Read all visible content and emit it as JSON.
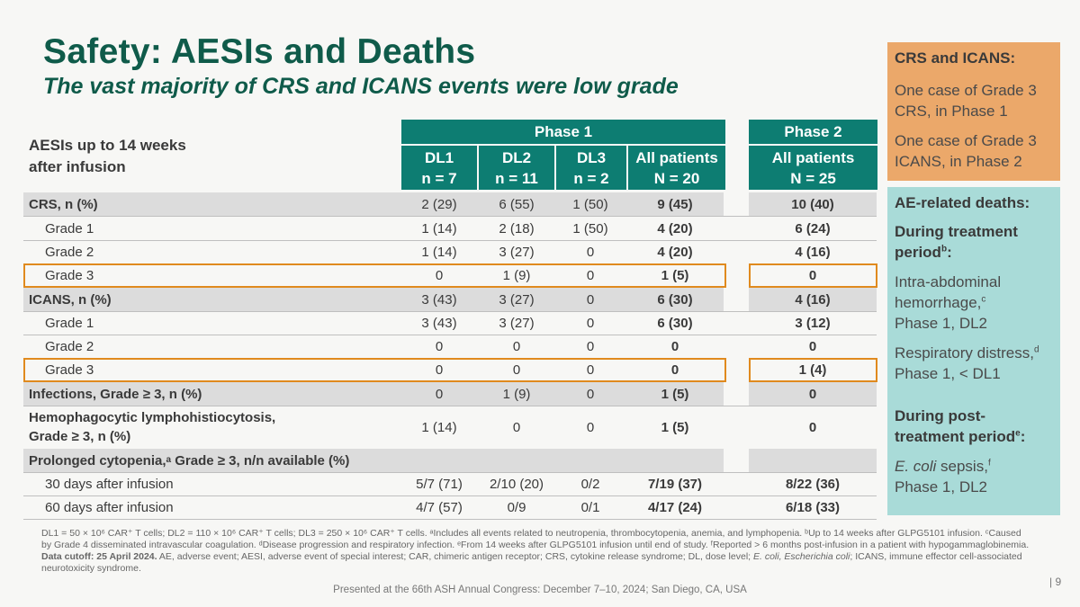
{
  "title": "Safety: AESIs and Deaths",
  "subtitle": "The vast majority of CRS and ICANS events were low grade",
  "table": {
    "row_header": "AESIs up to 14 weeks after infusion",
    "phase1_label": "Phase 1",
    "phase2_label": "Phase 2",
    "columns": [
      {
        "name": "DL1",
        "n": "n = 7"
      },
      {
        "name": "DL2",
        "n": "n = 11"
      },
      {
        "name": "DL3",
        "n": "n = 2"
      },
      {
        "name": "All patients",
        "n": "N = 20"
      },
      {
        "name": "All patients",
        "n": "N = 25"
      }
    ],
    "rows": [
      {
        "label": "CRS, n (%)",
        "v": [
          "2 (29)",
          "6 (55)",
          "1 (50)",
          "9 (45)",
          "10 (40)"
        ]
      },
      {
        "label": "Grade 1",
        "v": [
          "1 (14)",
          "2 (18)",
          "1 (50)",
          "4 (20)",
          "6 (24)"
        ]
      },
      {
        "label": "Grade 2",
        "v": [
          "1 (14)",
          "3 (27)",
          "0",
          "4 (20)",
          "4 (16)"
        ]
      },
      {
        "label": "Grade 3",
        "v": [
          "0",
          "1 (9)",
          "0",
          "1 (5)",
          "0"
        ]
      },
      {
        "label": "ICANS, n (%)",
        "v": [
          "3 (43)",
          "3 (27)",
          "0",
          "6 (30)",
          "4 (16)"
        ]
      },
      {
        "label": "Grade 1",
        "v": [
          "3 (43)",
          "3 (27)",
          "0",
          "6 (30)",
          "3 (12)"
        ]
      },
      {
        "label": "Grade 2",
        "v": [
          "0",
          "0",
          "0",
          "0",
          "0"
        ]
      },
      {
        "label": "Grade 3",
        "v": [
          "0",
          "0",
          "0",
          "0",
          "1 (4)"
        ]
      },
      {
        "label": "Infections, Grade ≥ 3, n (%)",
        "v": [
          "0",
          "1 (9)",
          "0",
          "1 (5)",
          "0"
        ]
      },
      {
        "label": "Hemophagocytic lymphohistiocytosis,",
        "label2": "Grade ≥ 3, n (%)",
        "v": [
          "1 (14)",
          "0",
          "0",
          "1 (5)",
          "0"
        ]
      },
      {
        "label": "Prolonged cytopenia,",
        "sup": "a",
        "label_rest": " Grade ≥ 3, n/n available (%)"
      },
      {
        "label": "30 days after infusion",
        "v": [
          "5/7 (71)",
          "2/10 (20)",
          "0/2",
          "7/19 (37)",
          "8/22 (36)"
        ]
      },
      {
        "label": "60 days after infusion",
        "v": [
          "4/7 (57)",
          "0/9",
          "0/1",
          "4/17 (24)",
          "6/18 (33)"
        ]
      }
    ]
  },
  "crs_box": {
    "title": "CRS and ICANS:",
    "line1": "One case of Grade 3 CRS, in Phase 1",
    "line2": "One case of Grade 3 ICANS, in Phase 2"
  },
  "deaths_box": {
    "title": "AE-related deaths:",
    "during_treatment": "During treatment period",
    "during_treatment_sup": "b",
    "item1": "Intra-abdominal hemorrhage,",
    "item1_sup": "c",
    "item1_detail": "Phase 1, DL2",
    "item2": "Respiratory distress,",
    "item2_sup": "d",
    "item2_detail": "Phase 1, < DL1",
    "post_treatment": "During post-treatment period",
    "post_treatment_sup": "e",
    "item3": "E. coli",
    "item3_rest": " sepsis,",
    "item3_sup": "f",
    "item3_detail": "Phase 1, DL2"
  },
  "footnote": {
    "p1": "DL1 = 50 × 10⁶ CAR⁺ T cells; DL2 = 110 × 10⁶ CAR⁺ T cells; DL3 = 250 × 10⁶ CAR⁺ T cells. ᵃIncludes all events related to neutropenia, thrombocytopenia, anemia, and lymphopenia. ᵇUp to 14 weeks after GLPG5101 infusion. ᶜCaused by Grade 4 disseminated intravascular coagulation. ᵈDisease progression and respiratory infection. ᵉFrom 14 weeks after GLPG5101 infusion until end of study. ᶠReported > 6 months post-infusion in a patient with hypogammaglobinemia.",
    "cutoff": "Data cutoff: 25 April 2024.",
    "p2": "AE, adverse event; AESI, adverse event of special interest; CAR, chimeric antigen receptor; CRS, cytokine release syndrome; DL, dose level;",
    "ecoli": "E. coli, Escherichia coli",
    "p3": "; ICANS, immune effector cell-associated neurotoxicity syndrome."
  },
  "presented": "Presented at the 66th ASH Annual Congress: December 7–10, 2024; San Diego, CA, USA",
  "page_number": "| 9"
}
